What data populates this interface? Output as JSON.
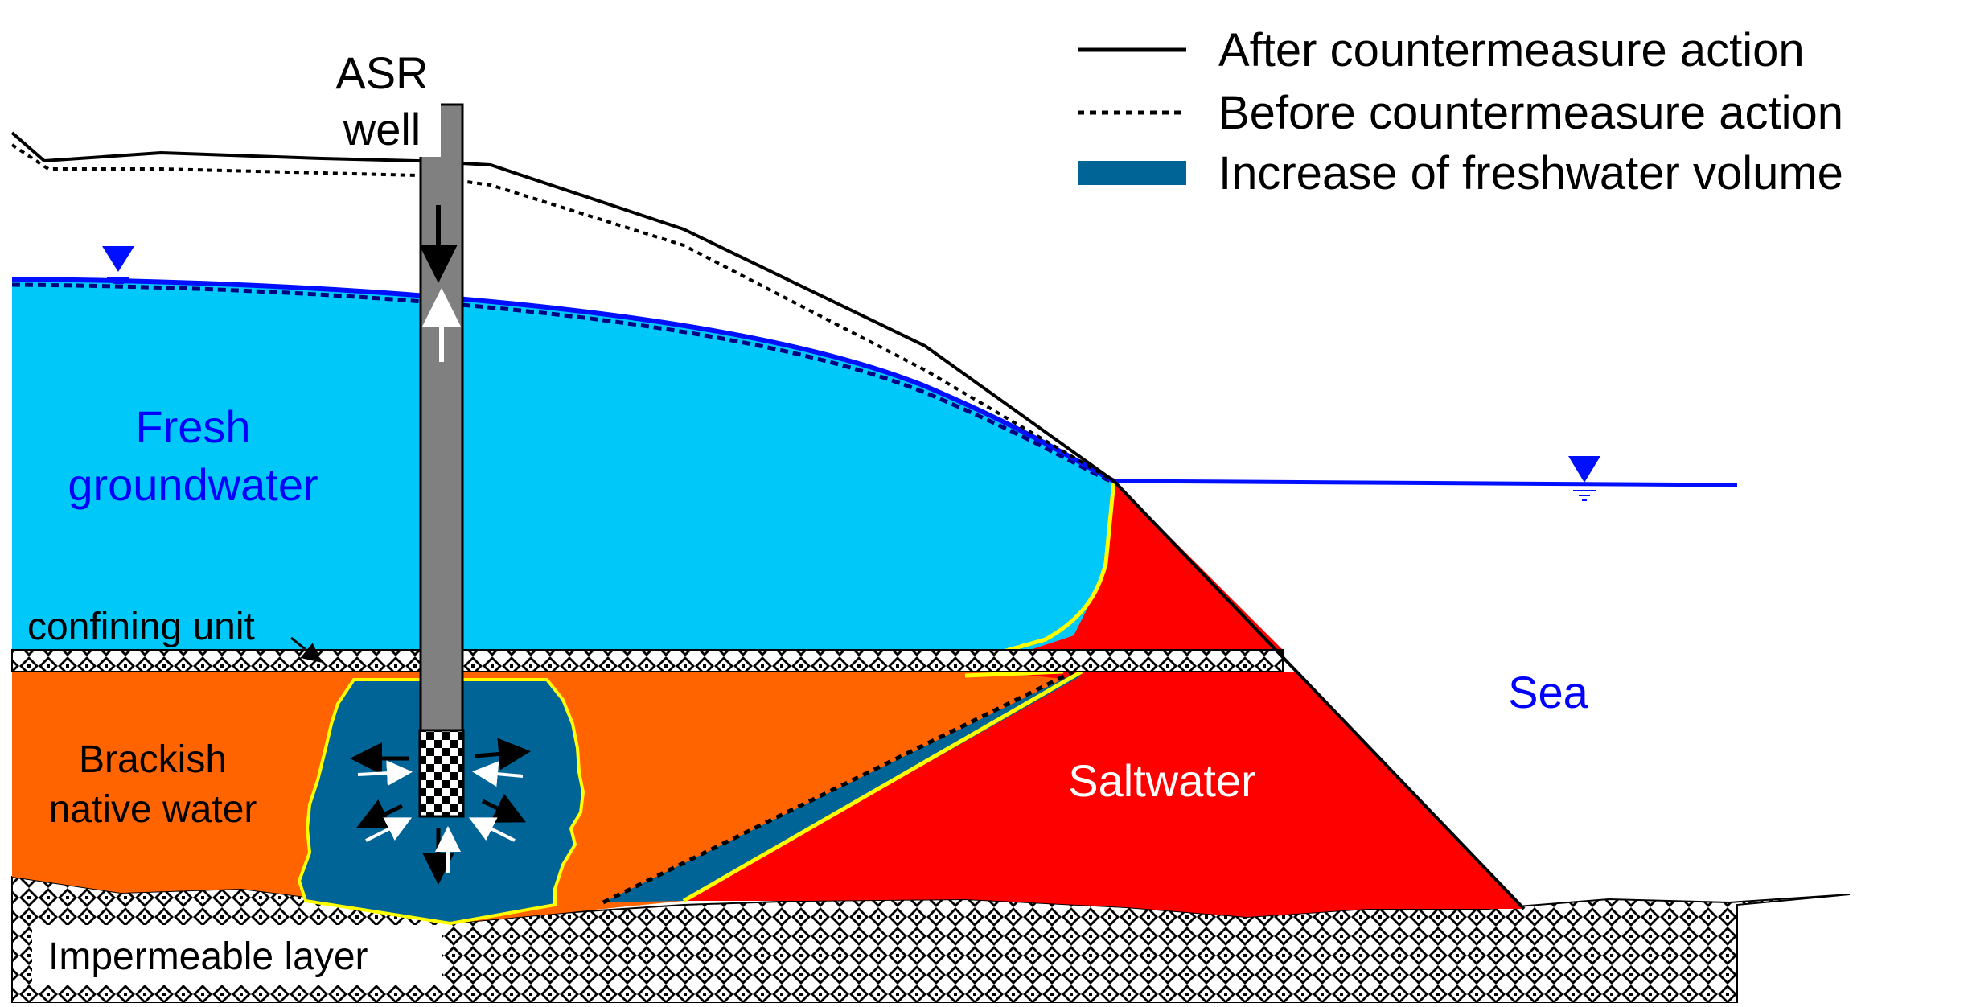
{
  "diagram": {
    "well_label_line1": "ASR",
    "well_label_line2": "well",
    "fresh_label_line1": "Fresh",
    "fresh_label_line2": "groundwater",
    "confining_label": "confining unit",
    "brackish_label_line1": "Brackish",
    "brackish_label_line2": "native water",
    "saltwater_label": "Saltwater",
    "sea_label": "Sea",
    "impermeable_label": "Impermeable layer"
  },
  "legend": {
    "items": [
      {
        "label": "After countermeasure action",
        "style": "solid-line"
      },
      {
        "label": "Before countermeasure action",
        "style": "dotted-line"
      },
      {
        "label": "Increase of freshwater volume",
        "style": "filled-band"
      }
    ]
  },
  "colors": {
    "fresh_water": "#00c8f8",
    "water_table": "#0010ff",
    "brackish": "#ff6400",
    "saltwater": "#ff0000",
    "freshwater_increase": "#006496",
    "interface": "#ffff00",
    "well": "#808080",
    "label_blue": "#0000ff",
    "sea_label": "#0000ff"
  },
  "icons": [
    "water-table-triangle-icon",
    "flow-arrow-icon",
    "well-screen-icon"
  ]
}
